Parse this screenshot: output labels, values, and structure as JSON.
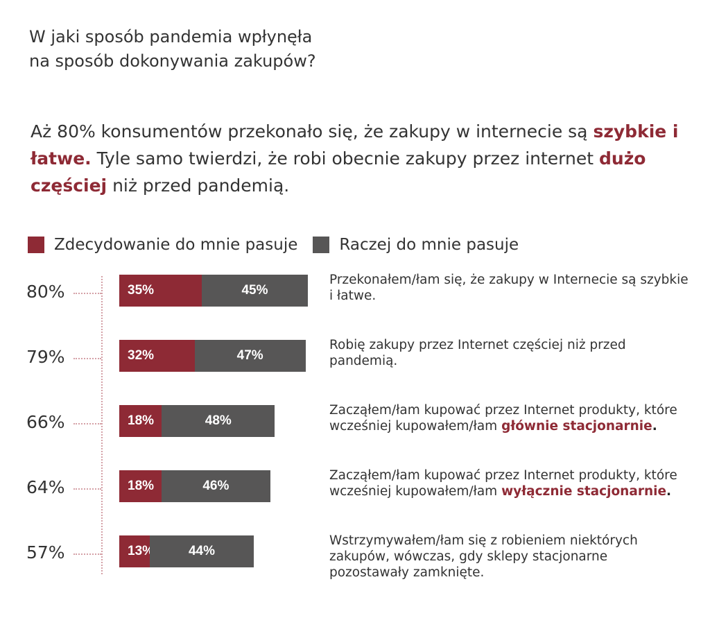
{
  "title_line1": "W jaki sposób pandemia wpłynęła",
  "title_line2": "na sposób dokonywania zakupów?",
  "intro": {
    "part1": "Aż 80% konsumentów przekonało się, że zakupy w internecie są ",
    "hl1": "szybkie i łatwe.",
    "part2": " Tyle samo twierdzi, że robi obecnie zakupy przez internet ",
    "hl2": "dużo częściej",
    "part3": " niż przed pandemią."
  },
  "colors": {
    "series1": "#8e2a35",
    "series2": "#575656",
    "accent": "#8e2a35"
  },
  "chart_data": {
    "type": "bar",
    "orientation": "horizontal",
    "stacked": true,
    "series": [
      {
        "name": "Zdecydowanie do mnie pasuje",
        "values": [
          35,
          32,
          18,
          18,
          13
        ]
      },
      {
        "name": "Raczej do mnie pasuje",
        "values": [
          45,
          47,
          48,
          46,
          44
        ]
      }
    ],
    "totals": [
      "80%",
      "79%",
      "66%",
      "64%",
      "57%"
    ],
    "value_labels": [
      [
        "35%",
        "45%"
      ],
      [
        "32%",
        "47%"
      ],
      [
        "18%",
        "48%"
      ],
      [
        "18%",
        "46%"
      ],
      [
        "13%",
        "44%"
      ]
    ],
    "legend_position": "top-left",
    "grid": false,
    "categories": [
      {
        "text": "Przekonałem/łam się, że zakupy w Internecie są szybkie i łatwe.",
        "emph": "",
        "end": ""
      },
      {
        "text": "Robię zakupy przez Internet częściej niż przed pandemią.",
        "emph": "",
        "end": ""
      },
      {
        "text": "Zacząłem/łam kupować przez Internet produkty, które wcześniej kupowałem/łam ",
        "emph": "głównie stacjonarnie",
        "end": "."
      },
      {
        "text": "Zacząłem/łam kupować przez Internet produkty, które wcześniej kupowałem/łam ",
        "emph": "wyłącznie stacjonarnie",
        "end": "."
      },
      {
        "text": "Wstrzymywałem/łam się z robieniem niektórych zakupów, wówczas, gdy sklepy stacjonarne pozostawały zamknięte.",
        "emph": "",
        "end": ""
      }
    ]
  }
}
